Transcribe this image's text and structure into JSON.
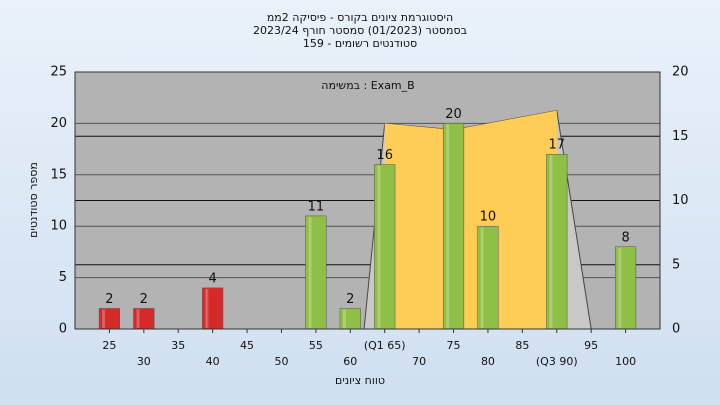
{
  "chart_data": {
    "type": "bar",
    "title": "היסטוגרמת ציונים בקורס - פיסיקה 2ממ",
    "subtitle": "בסמסטר  (01/2023)  סמסטר חורף 2023/24",
    "subtitle2": "סטודנטים רשומים - 159",
    "annotation": "במשימה : Exam_B",
    "y_label": "מספר סטודנטים",
    "x_label": "טווח ציונים",
    "x": [
      25,
      30,
      40,
      55,
      60,
      65,
      75,
      80,
      90,
      100
    ],
    "values": [
      2,
      2,
      4,
      11,
      2,
      16,
      20,
      10,
      17,
      8
    ],
    "colors": [
      "#d42a2a",
      "#d42a2a",
      "#d42a2a",
      "#8fbf45",
      "#8fbf45",
      "#8fbf45",
      "#8fbf45",
      "#8fbf45",
      "#8fbf45",
      "#8fbf45"
    ],
    "area": {
      "axis": "y2",
      "x": [
        62,
        65,
        75,
        90,
        95
      ],
      "values": [
        0,
        16,
        15.5,
        17,
        0
      ],
      "color": "#ffcc55",
      "edge_color": "#c8c8c8"
    },
    "xlim": [
      20,
      105
    ],
    "xticks": [
      25,
      30,
      35,
      40,
      45,
      50,
      55,
      60,
      {
        "value": 65,
        "label": "(Q1 65)"
      },
      70,
      75,
      80,
      85,
      {
        "value": 90,
        "label": "(Q3 90)"
      },
      95,
      100
    ],
    "ylim": [
      0,
      25
    ],
    "yticks": [
      0,
      5,
      10,
      15,
      20,
      25
    ],
    "y2lim": [
      0,
      20
    ],
    "y2ticks": [
      0,
      5,
      10,
      15,
      20
    ],
    "grid": true
  }
}
